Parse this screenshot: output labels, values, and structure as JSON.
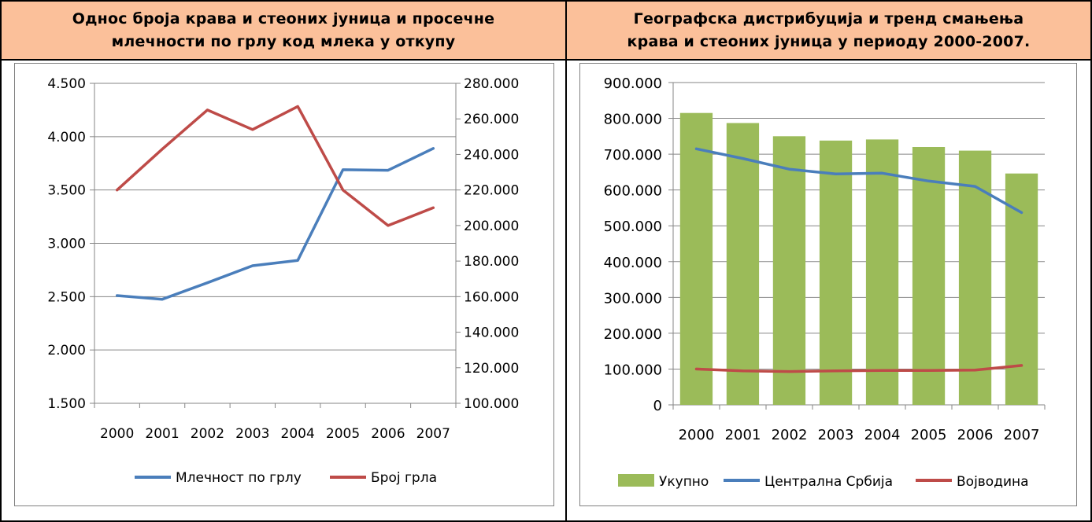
{
  "panels": [
    {
      "title": "Однос броја крава и стеоних јуница и просечне\nмлечности по грлу код млека у откупу"
    },
    {
      "title": "Географска дистрибуција и тренд смањења\nкрава и стеоних јуница у периоду 2000-2007."
    }
  ],
  "colors": {
    "header_bg": "#FBC09A",
    "blue": "#4A7EBB",
    "red": "#BE4B48",
    "green": "#9BBB59",
    "grid": "#868686"
  },
  "chart_data": [
    {
      "type": "line",
      "categories": [
        "2000",
        "2001",
        "2002",
        "2003",
        "2004",
        "2005",
        "2006",
        "2007"
      ],
      "series": [
        {
          "name": "Млечност по грлу",
          "axis": "left",
          "values": [
            2510,
            2475,
            2630,
            2790,
            2840,
            3690,
            3685,
            3890
          ]
        },
        {
          "name": "Број грла",
          "axis": "right",
          "values": [
            220000,
            243000,
            265000,
            254000,
            267000,
            220000,
            200000,
            210000
          ]
        }
      ],
      "y_left": {
        "min": 1500,
        "max": 4500,
        "step": 500,
        "ticks": [
          "1.500",
          "2.000",
          "2.500",
          "3.000",
          "3.500",
          "4.000",
          "4.500"
        ]
      },
      "y_right": {
        "min": 100000,
        "max": 280000,
        "step": 20000,
        "ticks": [
          "100.000",
          "120.000",
          "140.000",
          "160.000",
          "180.000",
          "200.000",
          "220.000",
          "240.000",
          "260.000",
          "280.000"
        ]
      },
      "grid": true,
      "legend_position": "bottom"
    },
    {
      "type": "bar",
      "categories": [
        "2000",
        "2001",
        "2002",
        "2003",
        "2004",
        "2005",
        "2006",
        "2007"
      ],
      "series": [
        {
          "name": "Укупно",
          "kind": "bar",
          "values": [
            815000,
            787000,
            750000,
            738000,
            741000,
            720000,
            710000,
            646000
          ]
        },
        {
          "name": "Централна Србија",
          "kind": "line",
          "values": [
            715000,
            688000,
            658000,
            645000,
            647000,
            625000,
            610000,
            537000
          ]
        },
        {
          "name": "Војводина",
          "kind": "line",
          "values": [
            100000,
            95000,
            93000,
            95000,
            96000,
            96000,
            97000,
            110000
          ]
        }
      ],
      "y": {
        "min": 0,
        "max": 900000,
        "step": 100000,
        "ticks": [
          "0",
          "100.000",
          "200.000",
          "300.000",
          "400.000",
          "500.000",
          "600.000",
          "700.000",
          "800.000",
          "900.000"
        ]
      },
      "grid": true,
      "legend_position": "bottom"
    }
  ]
}
